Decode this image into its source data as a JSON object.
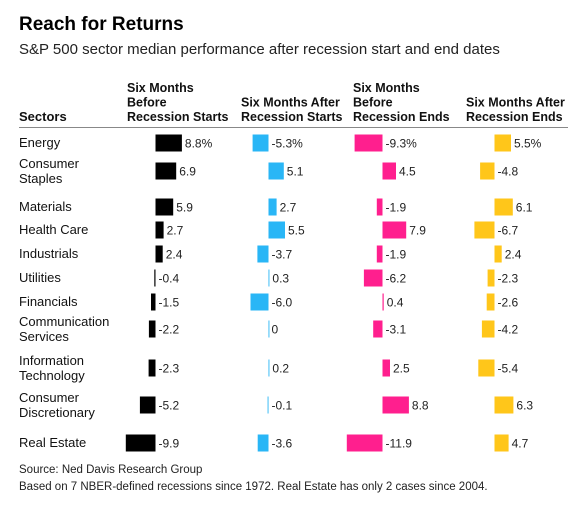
{
  "chart_data": {
    "type": "table",
    "title": "Reach for Returns",
    "subtitle": "S&P 500 sector median performance after recession start and end dates",
    "row_header": "Sectors",
    "columns": [
      "Six Months Before Recession Starts",
      "Six Months After Recession Starts",
      "Six Months Before Recession Ends",
      "Six Months After Recession Ends"
    ],
    "column_header_lines": [
      [
        "Six Months",
        "Before",
        "Recession Starts"
      ],
      [
        "Six Months After",
        "Recession Starts"
      ],
      [
        "Six Months",
        "Before",
        "Recession Ends"
      ],
      [
        "Six Months After",
        "Recession Ends"
      ]
    ],
    "column_colors": [
      "#000000",
      "#29b6f6",
      "#ff1f8e",
      "#ffc61a"
    ],
    "rows": [
      {
        "sector": "Energy",
        "lines": [
          "Energy"
        ],
        "values": [
          8.8,
          -5.3,
          -9.3,
          5.5
        ],
        "labels": [
          "8.8%",
          "-5.3%",
          "-9.3%",
          "5.5%"
        ]
      },
      {
        "sector": "Consumer Staples",
        "lines": [
          "Consumer",
          "Staples"
        ],
        "values": [
          6.9,
          5.1,
          4.5,
          -4.8
        ],
        "labels": [
          "6.9",
          "5.1",
          "4.5",
          "-4.8"
        ]
      },
      {
        "sector": "Materials",
        "lines": [
          "Materials"
        ],
        "values": [
          5.9,
          2.7,
          -1.9,
          6.1
        ],
        "labels": [
          "5.9",
          "2.7",
          "-1.9",
          "6.1"
        ]
      },
      {
        "sector": "Health Care",
        "lines": [
          "Health Care"
        ],
        "values": [
          2.7,
          5.5,
          7.9,
          -6.7
        ],
        "labels": [
          "2.7",
          "5.5",
          "7.9",
          "-6.7"
        ]
      },
      {
        "sector": "Industrials",
        "lines": [
          "Industrials"
        ],
        "values": [
          2.4,
          -3.7,
          -1.9,
          2.4
        ],
        "labels": [
          "2.4",
          "-3.7",
          "-1.9",
          "2.4"
        ]
      },
      {
        "sector": "Utilities",
        "lines": [
          "Utilities"
        ],
        "values": [
          -0.4,
          0.3,
          -6.2,
          -2.3
        ],
        "labels": [
          "-0.4",
          "0.3",
          "-6.2",
          "-2.3"
        ]
      },
      {
        "sector": "Financials",
        "lines": [
          "Financials"
        ],
        "values": [
          -1.5,
          -6.0,
          0.4,
          -2.6
        ],
        "labels": [
          "-1.5",
          "-6.0",
          "0.4",
          "-2.6"
        ]
      },
      {
        "sector": "Communication Services",
        "lines": [
          "Communication",
          "Services"
        ],
        "values": [
          -2.2,
          0,
          -3.1,
          -4.2
        ],
        "labels": [
          "-2.2",
          "0",
          "-3.1",
          "-4.2"
        ]
      },
      {
        "sector": "Information Technology",
        "lines": [
          "Information",
          "Technology"
        ],
        "values": [
          -2.3,
          0.2,
          2.5,
          -5.4
        ],
        "labels": [
          "-2.3",
          "0.2",
          "2.5",
          "-5.4"
        ]
      },
      {
        "sector": "Consumer Discretionary",
        "lines": [
          "Consumer",
          "Discretionary"
        ],
        "values": [
          -5.2,
          -0.1,
          8.8,
          6.3
        ],
        "labels": [
          "-5.2",
          "-0.1",
          "8.8",
          "6.3"
        ]
      },
      {
        "sector": "Real Estate",
        "lines": [
          "Real Estate"
        ],
        "values": [
          -9.9,
          -3.6,
          -11.9,
          4.7
        ],
        "labels": [
          "-9.9",
          "-3.6",
          "-11.9",
          "4.7"
        ]
      }
    ],
    "source": "Source: Ned Davis Research Group",
    "note": "Based on 7 NBER-defined recessions since 1972. Real Estate has only 2 cases since 2004."
  }
}
